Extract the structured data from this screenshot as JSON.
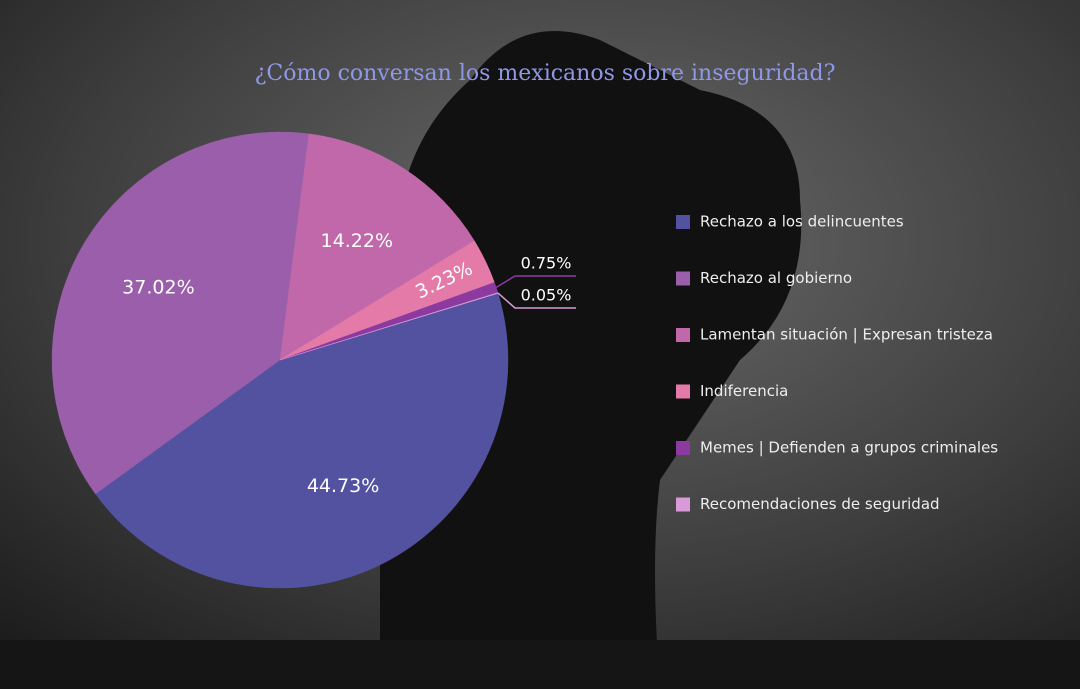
{
  "chart_data": {
    "type": "pie",
    "title": "¿Cómo conversan los mexicanos sobre inseguridad?",
    "categories": [
      "Rechazo a los delincuentes",
      "Rechazo al gobierno",
      "Lamentan situación | Expresan tristeza",
      "Indiferencia",
      "Memes | Defienden a grupos criminales",
      "Recomendaciones de seguridad"
    ],
    "values": [
      44.73,
      37.02,
      14.22,
      3.23,
      0.75,
      0.05
    ],
    "value_labels": [
      "44.73%",
      "37.02%",
      "14.22%",
      "3.23%",
      "0.75%",
      "0.05%"
    ],
    "colors": [
      "#5352a0",
      "#9a5eaa",
      "#c068aa",
      "#e47aa8",
      "#8c3aa0",
      "#d99ad8"
    ],
    "legend": "right"
  }
}
